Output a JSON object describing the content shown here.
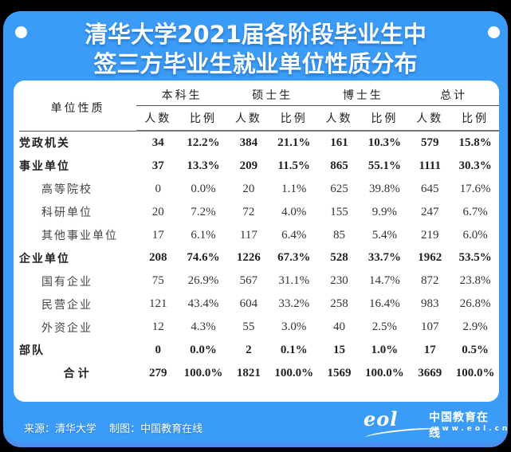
{
  "title": {
    "line1": "清华大学2021届各阶段毕业生中",
    "line2": "签三方毕业生就业单位性质分布"
  },
  "table": {
    "corner_label": "单位性质",
    "groups": [
      "本科生",
      "硕士生",
      "博士生",
      "总计"
    ],
    "sub_headers": [
      "人数",
      "比例",
      "人数",
      "比例",
      "人数",
      "比例",
      "人数",
      "比例"
    ],
    "rows": [
      {
        "label": "党政机关",
        "type": "bold",
        "values": [
          "34",
          "12.2%",
          "384",
          "21.1%",
          "161",
          "10.3%",
          "579",
          "15.8%"
        ]
      },
      {
        "label": "事业单位",
        "type": "bold",
        "values": [
          "37",
          "13.3%",
          "209",
          "11.5%",
          "865",
          "55.1%",
          "1111",
          "30.3%"
        ]
      },
      {
        "label": "高等院校",
        "type": "sub",
        "values": [
          "0",
          "0.0%",
          "20",
          "1.1%",
          "625",
          "39.8%",
          "645",
          "17.6%"
        ]
      },
      {
        "label": "科研单位",
        "type": "sub",
        "values": [
          "20",
          "7.2%",
          "72",
          "4.0%",
          "155",
          "9.9%",
          "247",
          "6.7%"
        ]
      },
      {
        "label": "其他事业单位",
        "type": "sub",
        "values": [
          "17",
          "6.1%",
          "117",
          "6.4%",
          "85",
          "5.4%",
          "219",
          "6.0%"
        ]
      },
      {
        "label": "企业单位",
        "type": "bold",
        "values": [
          "208",
          "74.6%",
          "1226",
          "67.3%",
          "528",
          "33.7%",
          "1962",
          "53.5%"
        ]
      },
      {
        "label": "国有企业",
        "type": "sub",
        "values": [
          "75",
          "26.9%",
          "567",
          "31.1%",
          "230",
          "14.7%",
          "872",
          "23.8%"
        ]
      },
      {
        "label": "民营企业",
        "type": "sub",
        "values": [
          "121",
          "43.4%",
          "604",
          "33.2%",
          "258",
          "16.4%",
          "983",
          "26.8%"
        ]
      },
      {
        "label": "外资企业",
        "type": "sub",
        "values": [
          "12",
          "4.3%",
          "55",
          "3.0%",
          "40",
          "2.5%",
          "107",
          "2.9%"
        ]
      },
      {
        "label": "部队",
        "type": "bold",
        "values": [
          "0",
          "0.0%",
          "2",
          "0.1%",
          "15",
          "1.0%",
          "17",
          "0.5%"
        ]
      },
      {
        "label": "合计",
        "type": "total",
        "values": [
          "279",
          "100.0%",
          "1821",
          "100.0%",
          "1569",
          "100.0%",
          "3669",
          "100.0%"
        ]
      }
    ]
  },
  "footer": {
    "source": "来源：清华大学",
    "chart_by": "制图：中国教育在线"
  },
  "logo": {
    "mark": "eol",
    "name": "中国教育在线",
    "url": "www.eol.cn"
  },
  "colors": {
    "card_blue": "#3b9cf7",
    "panel": "#ffffff",
    "text": "#222222"
  }
}
